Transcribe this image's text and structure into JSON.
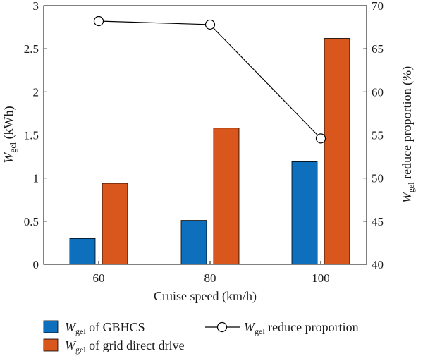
{
  "chart_data": {
    "type": "bar",
    "categories": [
      "60",
      "80",
      "100"
    ],
    "xlabel": "Cruise speed (km/h)",
    "ylabel_left": {
      "var": "W",
      "sub": "gel",
      "rest": " (kWh)"
    },
    "ylabel_right": {
      "var": "W",
      "sub": "gel",
      "rest": " reduce proportion (%)"
    },
    "ylim_left": [
      0,
      3
    ],
    "yticks_left": [
      "0",
      "0.5",
      "1",
      "1.5",
      "2",
      "2.5",
      "3"
    ],
    "ylim_right": [
      40,
      70
    ],
    "yticks_right": [
      "40",
      "45",
      "50",
      "55",
      "60",
      "65",
      "70"
    ],
    "series": [
      {
        "name": {
          "var": "W",
          "sub": "gel",
          "rest": " of GBHCS"
        },
        "type": "bar",
        "axis": "left",
        "color": "#0e6fbd",
        "values": [
          0.3,
          0.51,
          1.19
        ]
      },
      {
        "name": {
          "var": "W",
          "sub": "gel",
          "rest": " of grid direct drive"
        },
        "type": "bar",
        "axis": "left",
        "color": "#d9561c",
        "values": [
          0.94,
          1.58,
          2.62
        ]
      },
      {
        "name": {
          "var": "W",
          "sub": "gel",
          "rest": " reduce proportion"
        },
        "type": "line",
        "axis": "right",
        "color": "#000000",
        "marker": "open-circle",
        "values": [
          68.2,
          67.8,
          54.6
        ]
      }
    ],
    "grid": false,
    "legend_position": "bottom"
  }
}
